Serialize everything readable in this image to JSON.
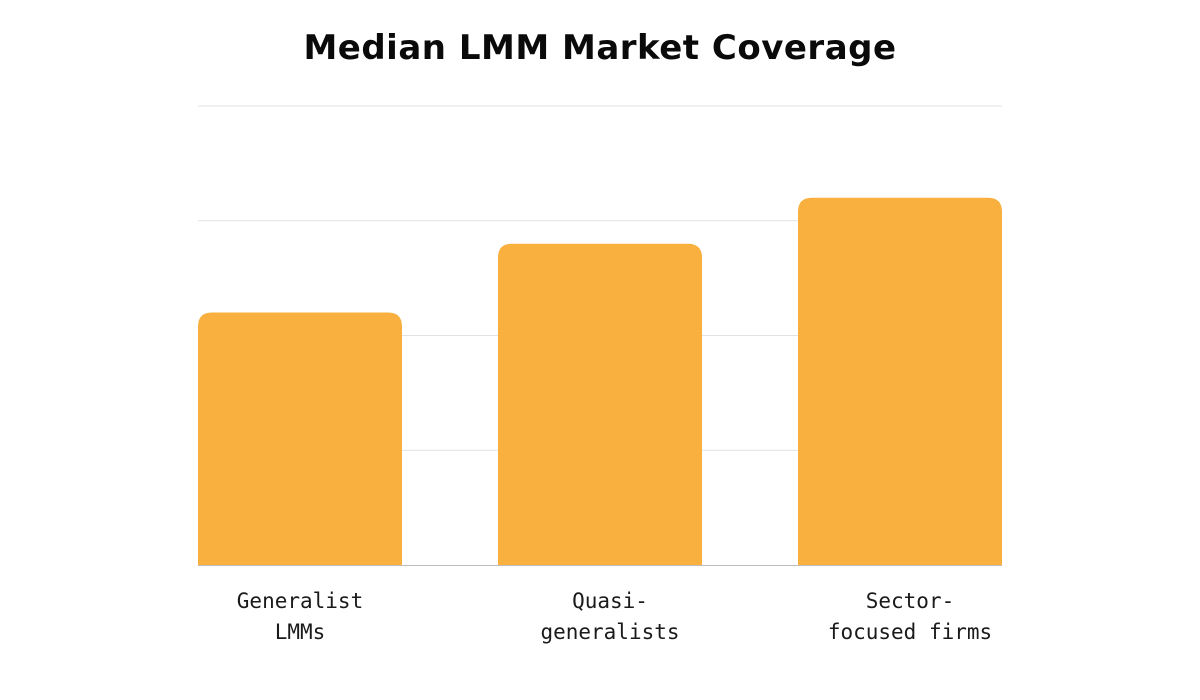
{
  "chart_data": {
    "type": "bar",
    "title": "Median LMM Market Coverage",
    "categories": [
      [
        "Generalist",
        "LMMs"
      ],
      [
        "Quasi-",
        "generalists"
      ],
      [
        "Sector-",
        "focused firms"
      ]
    ],
    "values": [
      2.2,
      2.8,
      3.2
    ],
    "ylim": [
      0,
      4
    ],
    "ytick_step": 1,
    "grid": true,
    "bar_color": "#F9B03F",
    "grid_color": "#E2E2E2",
    "axis_color": "#BDBDBD"
  }
}
